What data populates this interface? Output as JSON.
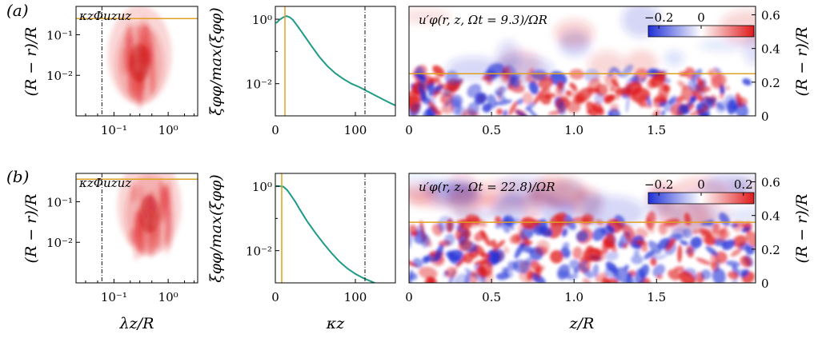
{
  "colors": {
    "red": "#e0191b",
    "blue": "#1f2fd6",
    "orange": "#e0a020",
    "teal": "#1e9a86",
    "dashdot": "#111111"
  },
  "colorbar": {
    "a_ticks": [
      "−0.2",
      "0"
    ],
    "b_ticks": [
      "−0.2",
      "0",
      "0.2"
    ],
    "range": [
      -0.25,
      0.25
    ]
  },
  "chart_data": [
    {
      "panel": "(a)",
      "type": "heatmap",
      "title": "κzΦuzuz",
      "xlabel": "",
      "ylabel": "(R − r)/R",
      "xscale": "log",
      "yscale": "log",
      "xlim": [
        0.02,
        3.5
      ],
      "ylim": [
        0.001,
        0.5
      ],
      "x_ticks": [
        "10⁻¹",
        "10⁰"
      ],
      "y_ticks": [
        "10⁻²",
        "10⁻¹"
      ],
      "hline_y": 0.25,
      "vline_x": 0.06,
      "peak": {
        "x": 0.3,
        "y": 0.02
      }
    },
    {
      "panel": "(a)",
      "type": "line",
      "xlabel": "",
      "ylabel": "ξφφ/max(ξφφ)",
      "yscale": "log",
      "xlim": [
        0,
        150
      ],
      "ylim": [
        0.001,
        2.5
      ],
      "x_ticks": [
        "0",
        "100"
      ],
      "y_ticks": [
        "10⁻²",
        "10⁰"
      ],
      "vline_orange_x": 12,
      "vline_dashdot_x": 112,
      "x": [
        1,
        5,
        10,
        14,
        18,
        22,
        28,
        35,
        45,
        55,
        65,
        75,
        85,
        95,
        105,
        115,
        125,
        135,
        145,
        150
      ],
      "y": [
        0.75,
        0.95,
        1.15,
        1.25,
        1.15,
        0.95,
        0.6,
        0.34,
        0.15,
        0.068,
        0.035,
        0.021,
        0.014,
        0.01,
        0.0078,
        0.0058,
        0.0043,
        0.0032,
        0.0024,
        0.0021
      ]
    },
    {
      "panel": "(a)",
      "type": "heatmap",
      "title": "u′φ(r, z, Ωt = 9.3)/ΩR",
      "xlabel": "",
      "ylabel": "(R − r)/R",
      "xlim": [
        0,
        2.1
      ],
      "ylim": [
        0,
        0.65
      ],
      "x_ticks": [
        "0",
        "0.5",
        "1.0",
        "1.5"
      ],
      "y_ticks": [
        "0",
        "0.2",
        "0.4",
        "0.6"
      ],
      "hline_y": 0.25
    },
    {
      "panel": "(b)",
      "type": "heatmap",
      "title": "κzΦuzuz",
      "xlabel": "λz/R",
      "ylabel": "(R − r)/R",
      "xscale": "log",
      "yscale": "log",
      "xlim": [
        0.02,
        3.5
      ],
      "ylim": [
        0.001,
        0.5
      ],
      "x_ticks": [
        "10⁻¹",
        "10⁰"
      ],
      "y_ticks": [
        "10⁻²",
        "10⁻¹"
      ],
      "hline_y": 0.36,
      "vline_x": 0.06,
      "peak": {
        "x": 0.45,
        "y": 0.05
      }
    },
    {
      "panel": "(b)",
      "type": "line",
      "xlabel": "κz",
      "ylabel": "ξφφ/max(ξφφ)",
      "yscale": "log",
      "xlim": [
        0,
        150
      ],
      "ylim": [
        0.001,
        2.5
      ],
      "x_ticks": [
        "0",
        "100"
      ],
      "y_ticks": [
        "10⁻²",
        "10⁰"
      ],
      "vline_orange_x": 8,
      "vline_dashdot_x": 112,
      "x": [
        1,
        5,
        10,
        15,
        20,
        25,
        30,
        40,
        50,
        60,
        70,
        80,
        90,
        100,
        110,
        120,
        130
      ],
      "y": [
        1.0,
        1.0,
        0.97,
        0.75,
        0.5,
        0.33,
        0.2,
        0.08,
        0.036,
        0.017,
        0.0085,
        0.0046,
        0.0028,
        0.0019,
        0.0014,
        0.0011,
        0.00085
      ]
    },
    {
      "panel": "(b)",
      "type": "heatmap",
      "title": "u′φ(r, z, Ωt = 22.8)/ΩR",
      "xlabel": "z/R",
      "ylabel": "(R − r)/R",
      "xlim": [
        0,
        2.1
      ],
      "ylim": [
        0,
        0.65
      ],
      "x_ticks": [
        "0",
        "0.5",
        "1.0",
        "1.5"
      ],
      "y_ticks": [
        "0",
        "0.2",
        "0.4",
        "0.6"
      ],
      "hline_y": 0.36
    }
  ],
  "labels": {
    "panel_a": "(a)",
    "panel_b": "(b)",
    "ylab_left": "(R − r)/R",
    "ylab_mid": "ξφφ/max(ξφφ)",
    "ylab_right": "(R − r)/R",
    "xlab_left": "λz/R",
    "xlab_mid": "κz",
    "xlab_right": "z/R",
    "spec_title_a": "κzΦuzuz",
    "spec_title_b": "κzΦuzuz",
    "field_title_a": "u′φ(r, z, Ωt = 9.3)/ΩR",
    "field_title_b": "u′φ(r, z, Ωt = 22.8)/ΩR"
  }
}
